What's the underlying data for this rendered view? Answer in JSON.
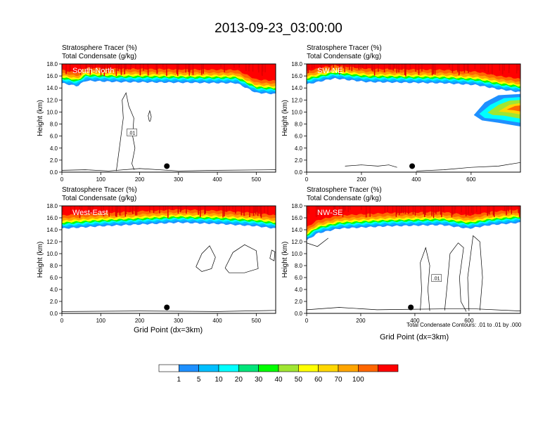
{
  "title": "2013-09-23_03:00:00",
  "colors": {
    "bins": [
      "#ffffff",
      "#1e90ff",
      "#00bfff",
      "#00ffff",
      "#00e57a",
      "#00ff00",
      "#a0e632",
      "#ffff00",
      "#ffd700",
      "#ffa500",
      "#ff6600",
      "#ff0000"
    ]
  },
  "chart_data": [
    {
      "type": "contour",
      "panel_label": "South-North",
      "subtitle_1": "Stratosphere Tracer   (%)",
      "subtitle_2": "Total Condensate   (g/kg)",
      "xlabel": "",
      "ylabel": "Height (km)",
      "xlim": [
        0,
        550
      ],
      "ylim": [
        0,
        18
      ],
      "xticks": [
        "0",
        "100",
        "200",
        "300",
        "400",
        "500"
      ],
      "xtick_values": [
        0,
        100,
        200,
        300,
        400,
        500
      ],
      "yticks": [
        "0.0",
        "2.0",
        "4.0",
        "6.0",
        "8.0",
        "10.0",
        "12.0",
        "14.0",
        "16.0",
        "18.0"
      ],
      "tracer_bottom_km": [
        [
          0,
          14.8
        ],
        [
          40,
          14.3
        ],
        [
          60,
          15.2
        ],
        [
          150,
          15.0
        ],
        [
          300,
          14.9
        ],
        [
          450,
          14.8
        ],
        [
          500,
          13.2
        ],
        [
          550,
          13.0
        ]
      ],
      "condensate_label": ".01",
      "marker_x": 270,
      "marker_y_km": 1.0
    },
    {
      "type": "contour",
      "panel_label": "SW-NE",
      "subtitle_1": "Stratosphere Tracer   (%)",
      "subtitle_2": "Total Condensate   (g/kg)",
      "xlabel": "",
      "ylabel": "Height (km)",
      "xlim": [
        0,
        780
      ],
      "ylim": [
        0,
        18
      ],
      "xticks": [
        "0",
        "200",
        "400",
        "600"
      ],
      "xtick_values": [
        0,
        200,
        400,
        600
      ],
      "yticks": [
        "0.0",
        "2.0",
        "4.0",
        "6.0",
        "8.0",
        "10.0",
        "12.0",
        "14.0",
        "16.0",
        "18.0"
      ],
      "tracer_bottom_km": [
        [
          0,
          14.6
        ],
        [
          100,
          15.6
        ],
        [
          220,
          15.0
        ],
        [
          500,
          14.8
        ],
        [
          620,
          14.5
        ],
        [
          700,
          13.8
        ],
        [
          780,
          13.3
        ]
      ],
      "condensate_label": "",
      "marker_x": 385,
      "marker_y_km": 1.0
    },
    {
      "type": "contour",
      "panel_label": "West-East",
      "subtitle_1": "Stratosphere Tracer   (%)",
      "subtitle_2": "Total Condensate   (g/kg)",
      "xlabel": "Grid Point (dx=3km)",
      "ylabel": "Height (km)",
      "xlim": [
        0,
        550
      ],
      "ylim": [
        0,
        18
      ],
      "xticks": [
        "0",
        "100",
        "200",
        "300",
        "400",
        "500"
      ],
      "xtick_values": [
        0,
        100,
        200,
        300,
        400,
        500
      ],
      "yticks": [
        "0.0",
        "2.0",
        "4.0",
        "6.0",
        "8.0",
        "10.0",
        "12.0",
        "14.0",
        "16.0",
        "18.0"
      ],
      "tracer_bottom_km": [
        [
          0,
          14.2
        ],
        [
          100,
          14.6
        ],
        [
          200,
          14.9
        ],
        [
          300,
          15.2
        ],
        [
          400,
          15.0
        ],
        [
          500,
          14.6
        ],
        [
          550,
          14.2
        ]
      ],
      "condensate_label": "",
      "marker_x": 270,
      "marker_y_km": 1.0
    },
    {
      "type": "contour",
      "panel_label": "NW-SE",
      "subtitle_1": "Stratosphere Tracer   (%)",
      "subtitle_2": "Total Condensate   (g/kg)",
      "xlabel": "Grid Point (dx=3km)",
      "ylabel": "Height (km)",
      "xlim": [
        0,
        790
      ],
      "ylim": [
        0,
        18
      ],
      "xticks": [
        "0",
        "200",
        "400",
        "600"
      ],
      "xtick_values": [
        0,
        200,
        400,
        600
      ],
      "yticks": [
        "0.0",
        "2.0",
        "4.0",
        "6.0",
        "8.0",
        "10.0",
        "12.0",
        "14.0",
        "16.0",
        "18.0"
      ],
      "tracer_bottom_km": [
        [
          0,
          12.2
        ],
        [
          40,
          13.4
        ],
        [
          120,
          14.2
        ],
        [
          300,
          14.6
        ],
        [
          500,
          14.8
        ],
        [
          600,
          14.2
        ],
        [
          680,
          14.8
        ],
        [
          790,
          15.2
        ]
      ],
      "condensate_label": ".01",
      "marker_x": 385,
      "marker_y_km": 1.0,
      "contour_note": "Total Condensate Contours: .01 to .01 by .000"
    }
  ],
  "colorbar": {
    "labels": [
      "1",
      "5",
      "10",
      "20",
      "30",
      "40",
      "50",
      "60",
      "70",
      "100"
    ],
    "colors": [
      "#ffffff",
      "#1e90ff",
      "#00bfff",
      "#00ffff",
      "#00e57a",
      "#00ff00",
      "#a0e632",
      "#ffff00",
      "#ffd700",
      "#ffa500",
      "#ff6600",
      "#ff0000"
    ]
  }
}
